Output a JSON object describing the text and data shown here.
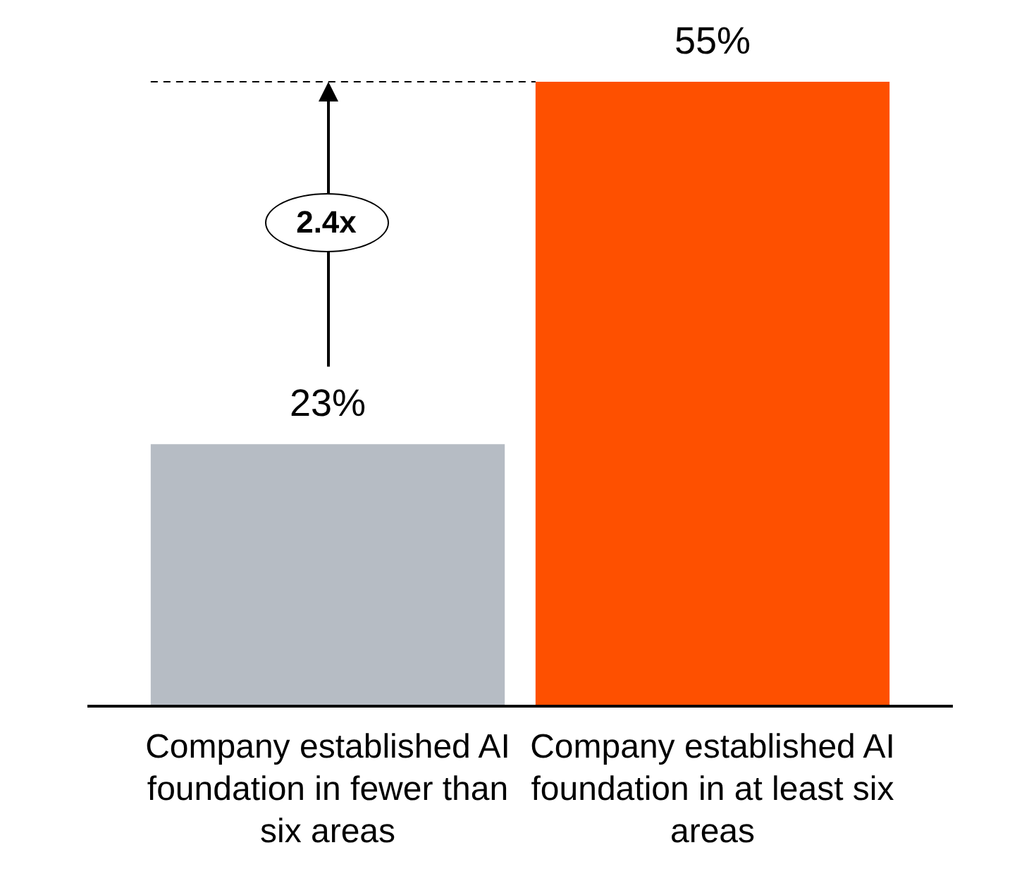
{
  "chart_data": {
    "type": "bar",
    "categories": [
      "Company established AI foundation in fewer than six areas",
      "Company established AI foundation in at least six areas"
    ],
    "values": [
      23,
      55
    ],
    "colors": [
      "#b6bcc4",
      "#fe5000"
    ],
    "value_labels": [
      "23%",
      "55%"
    ],
    "ref_lines": [
      {
        "axis": "y",
        "value": 55,
        "line_style": "dashed",
        "color": "#000000"
      }
    ],
    "annotations": [
      "2.4x"
    ],
    "grid": false,
    "legend": false
  }
}
